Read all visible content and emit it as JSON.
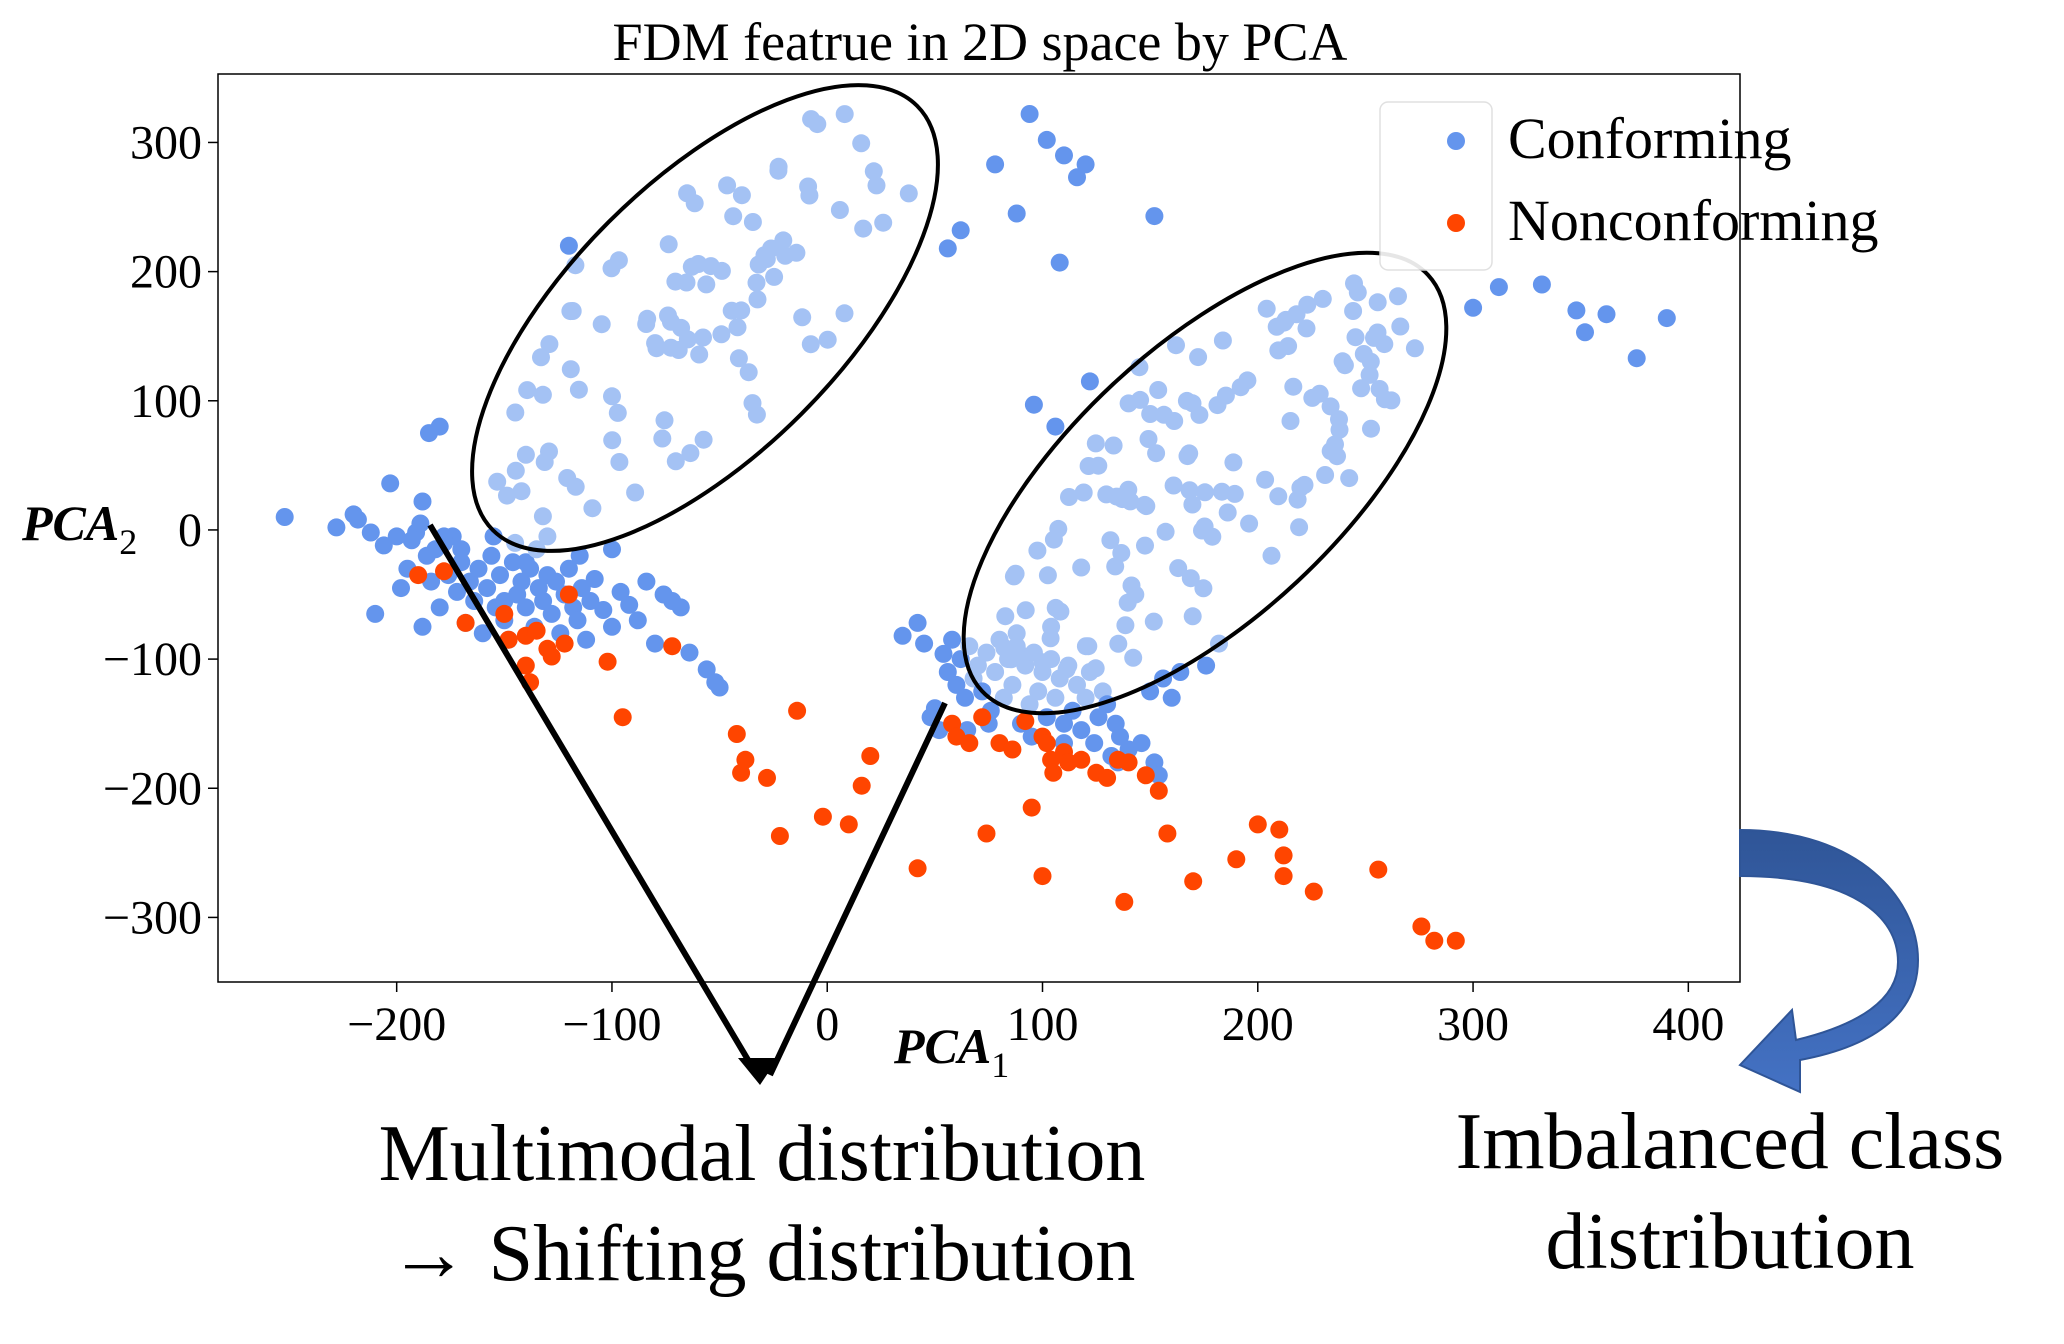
{
  "chart_data": {
    "type": "scatter",
    "title": "FDM featrue in 2D space by PCA",
    "xlabel": "PCA",
    "xlabel_sub": "1",
    "ylabel": "PCA",
    "ylabel_sub": "2",
    "xlim": [
      -283,
      424
    ],
    "ylim": [
      -350,
      353
    ],
    "xticks": [
      -200,
      -100,
      0,
      100,
      200,
      300,
      400
    ],
    "yticks": [
      -300,
      -200,
      -100,
      0,
      100,
      200,
      300
    ],
    "xtick_labels": [
      "−200",
      "−100",
      "0",
      "100",
      "200",
      "300",
      "400"
    ],
    "ytick_labels": [
      "−300",
      "−200",
      "−100",
      "0",
      "100",
      "200",
      "300"
    ],
    "legend_position": "top-right",
    "series": [
      {
        "name": "Conforming",
        "color": "#6495ED",
        "points": [
          [
            -252,
            10
          ],
          [
            -228,
            2
          ],
          [
            -220,
            12
          ],
          [
            -218,
            8
          ],
          [
            -212,
            -2
          ],
          [
            -210,
            -65
          ],
          [
            -206,
            -12
          ],
          [
            -203,
            36
          ],
          [
            -200,
            -5
          ],
          [
            -198,
            -45
          ],
          [
            -195,
            -30
          ],
          [
            -193,
            -8
          ],
          [
            -191,
            -2
          ],
          [
            -189,
            5
          ],
          [
            -188,
            -75
          ],
          [
            -186,
            -20
          ],
          [
            -184,
            -40
          ],
          [
            -182,
            -15
          ],
          [
            -180,
            -60
          ],
          [
            -178,
            -10
          ],
          [
            -176,
            -35
          ],
          [
            -174,
            -5
          ],
          [
            -172,
            -48
          ],
          [
            -170,
            -25
          ],
          [
            -168,
            -72
          ],
          [
            -166,
            -40
          ],
          [
            -164,
            -55
          ],
          [
            -162,
            -30
          ],
          [
            -160,
            -80
          ],
          [
            -158,
            -45
          ],
          [
            -156,
            -20
          ],
          [
            -154,
            -60
          ],
          [
            -152,
            -35
          ],
          [
            -150,
            -70
          ],
          [
            -148,
            -85
          ],
          [
            -146,
            -25
          ],
          [
            -144,
            -50
          ],
          [
            -142,
            -40
          ],
          [
            -140,
            -60
          ],
          [
            -138,
            -30
          ],
          [
            -136,
            -75
          ],
          [
            -134,
            -45
          ],
          [
            -132,
            -55
          ],
          [
            -130,
            -35
          ],
          [
            -128,
            -65
          ],
          [
            -126,
            -40
          ],
          [
            -124,
            -80
          ],
          [
            -122,
            -50
          ],
          [
            -120,
            -30
          ],
          [
            -118,
            -60
          ],
          [
            -116,
            -70
          ],
          [
            -114,
            -45
          ],
          [
            -112,
            -85
          ],
          [
            -110,
            -55
          ],
          [
            -108,
            -38
          ],
          [
            -104,
            -62
          ],
          [
            -100,
            -75
          ],
          [
            -96,
            -48
          ],
          [
            -92,
            -58
          ],
          [
            -88,
            -70
          ],
          [
            -84,
            -40
          ],
          [
            -80,
            -88
          ],
          [
            -76,
            -50
          ],
          [
            -72,
            -55
          ],
          [
            -68,
            -60
          ],
          [
            -64,
            -95
          ],
          [
            -56,
            -108
          ],
          [
            -52,
            -118
          ],
          [
            -50,
            -122
          ],
          [
            -185,
            75
          ],
          [
            -180,
            80
          ],
          [
            -188,
            22
          ],
          [
            -178,
            -5
          ],
          [
            -170,
            -15
          ],
          [
            -155,
            -5
          ],
          [
            -145,
            -10
          ],
          [
            -130,
            -5
          ],
          [
            -120,
            220
          ],
          [
            -117,
            205
          ],
          [
            -140,
            -25
          ],
          [
            -150,
            -55
          ],
          [
            -135,
            -15
          ],
          [
            -115,
            -20
          ],
          [
            -100,
            -15
          ],
          [
            35,
            -82
          ],
          [
            42,
            -72
          ],
          [
            45,
            -88
          ],
          [
            48,
            -145
          ],
          [
            50,
            -138
          ],
          [
            52,
            -155
          ],
          [
            54,
            -96
          ],
          [
            56,
            -110
          ],
          [
            58,
            -85
          ],
          [
            60,
            -120
          ],
          [
            62,
            -100
          ],
          [
            64,
            -130
          ],
          [
            66,
            -90
          ],
          [
            68,
            -115
          ],
          [
            70,
            -105
          ],
          [
            72,
            -125
          ],
          [
            74,
            -95
          ],
          [
            76,
            -140
          ],
          [
            78,
            -110
          ],
          [
            80,
            -85
          ],
          [
            82,
            -130
          ],
          [
            84,
            -100
          ],
          [
            86,
            -120
          ],
          [
            88,
            -90
          ],
          [
            90,
            -150
          ],
          [
            92,
            -105
          ],
          [
            94,
            -135
          ],
          [
            96,
            -95
          ],
          [
            98,
            -125
          ],
          [
            100,
            -110
          ],
          [
            102,
            -145
          ],
          [
            104,
            -100
          ],
          [
            106,
            -130
          ],
          [
            108,
            -115
          ],
          [
            110,
            -150
          ],
          [
            112,
            -105
          ],
          [
            114,
            -140
          ],
          [
            116,
            -120
          ],
          [
            118,
            -155
          ],
          [
            120,
            -130
          ],
          [
            122,
            -110
          ],
          [
            124,
            -165
          ],
          [
            126,
            -145
          ],
          [
            128,
            -125
          ],
          [
            130,
            -135
          ],
          [
            132,
            -175
          ],
          [
            134,
            -150
          ],
          [
            136,
            -160
          ],
          [
            140,
            -170
          ],
          [
            146,
            -165
          ],
          [
            152,
            -180
          ],
          [
            154,
            -190
          ],
          [
            160,
            -130
          ],
          [
            164,
            -110
          ],
          [
            176,
            -105
          ],
          [
            182,
            -88
          ],
          [
            156,
            -115
          ],
          [
            150,
            -125
          ],
          [
            65,
            -155
          ],
          [
            75,
            -150
          ],
          [
            95,
            -160
          ],
          [
            110,
            -165
          ],
          [
            135,
            -180
          ],
          [
            88,
            -80
          ],
          [
            104,
            -75
          ],
          [
            94,
            322
          ],
          [
            102,
            302
          ],
          [
            110,
            290
          ],
          [
            116,
            273
          ],
          [
            120,
            283
          ],
          [
            78,
            283
          ],
          [
            88,
            245
          ],
          [
            152,
            243
          ],
          [
            62,
            232
          ],
          [
            56,
            218
          ],
          [
            108,
            207
          ],
          [
            96,
            97
          ],
          [
            122,
            115
          ],
          [
            106,
            80
          ],
          [
            145,
            126
          ],
          [
            140,
            98
          ],
          [
            162,
            143
          ],
          [
            312,
            188
          ],
          [
            332,
            190
          ],
          [
            348,
            170
          ],
          [
            352,
            153
          ],
          [
            362,
            167
          ],
          [
            376,
            133
          ],
          [
            390,
            164
          ],
          [
            300,
            172
          ]
        ]
      },
      {
        "name": "Nonconforming",
        "color": "#FF4500",
        "points": [
          [
            -190,
            -35
          ],
          [
            -178,
            -32
          ],
          [
            -168,
            -72
          ],
          [
            -150,
            -65
          ],
          [
            -148,
            -85
          ],
          [
            -140,
            -82
          ],
          [
            -135,
            -78
          ],
          [
            -130,
            -92
          ],
          [
            -128,
            -98
          ],
          [
            -122,
            -88
          ],
          [
            -120,
            -50
          ],
          [
            -140,
            -105
          ],
          [
            -138,
            -118
          ],
          [
            -102,
            -102
          ],
          [
            -95,
            -145
          ],
          [
            -72,
            -90
          ],
          [
            -40,
            -188
          ],
          [
            -42,
            -158
          ],
          [
            -38,
            -178
          ],
          [
            -28,
            -192
          ],
          [
            -22,
            -237
          ],
          [
            -14,
            -140
          ],
          [
            -2,
            -222
          ],
          [
            10,
            -228
          ],
          [
            16,
            -198
          ],
          [
            20,
            -175
          ],
          [
            42,
            -262
          ],
          [
            58,
            -150
          ],
          [
            60,
            -160
          ],
          [
            66,
            -165
          ],
          [
            72,
            -145
          ],
          [
            74,
            -235
          ],
          [
            80,
            -165
          ],
          [
            86,
            -170
          ],
          [
            92,
            -148
          ],
          [
            95,
            -215
          ],
          [
            100,
            -160
          ],
          [
            102,
            -165
          ],
          [
            104,
            -178
          ],
          [
            105,
            -188
          ],
          [
            110,
            -172
          ],
          [
            112,
            -180
          ],
          [
            118,
            -178
          ],
          [
            125,
            -188
          ],
          [
            130,
            -192
          ],
          [
            135,
            -178
          ],
          [
            140,
            -180
          ],
          [
            148,
            -190
          ],
          [
            154,
            -202
          ],
          [
            158,
            -235
          ],
          [
            170,
            -272
          ],
          [
            190,
            -255
          ],
          [
            200,
            -228
          ],
          [
            210,
            -232
          ],
          [
            212,
            -252
          ],
          [
            212,
            -268
          ],
          [
            226,
            -280
          ],
          [
            256,
            -263
          ],
          [
            276,
            -307
          ],
          [
            282,
            -318
          ],
          [
            292,
            -318
          ],
          [
            138,
            -288
          ],
          [
            100,
            -268
          ]
        ]
      }
    ],
    "annotations": [
      {
        "text_line1": "Multimodal distribution",
        "text_line2": "→ Shifting distribution"
      },
      {
        "text_line1": "Imbalanced class",
        "text_line2": "distribution"
      }
    ]
  }
}
